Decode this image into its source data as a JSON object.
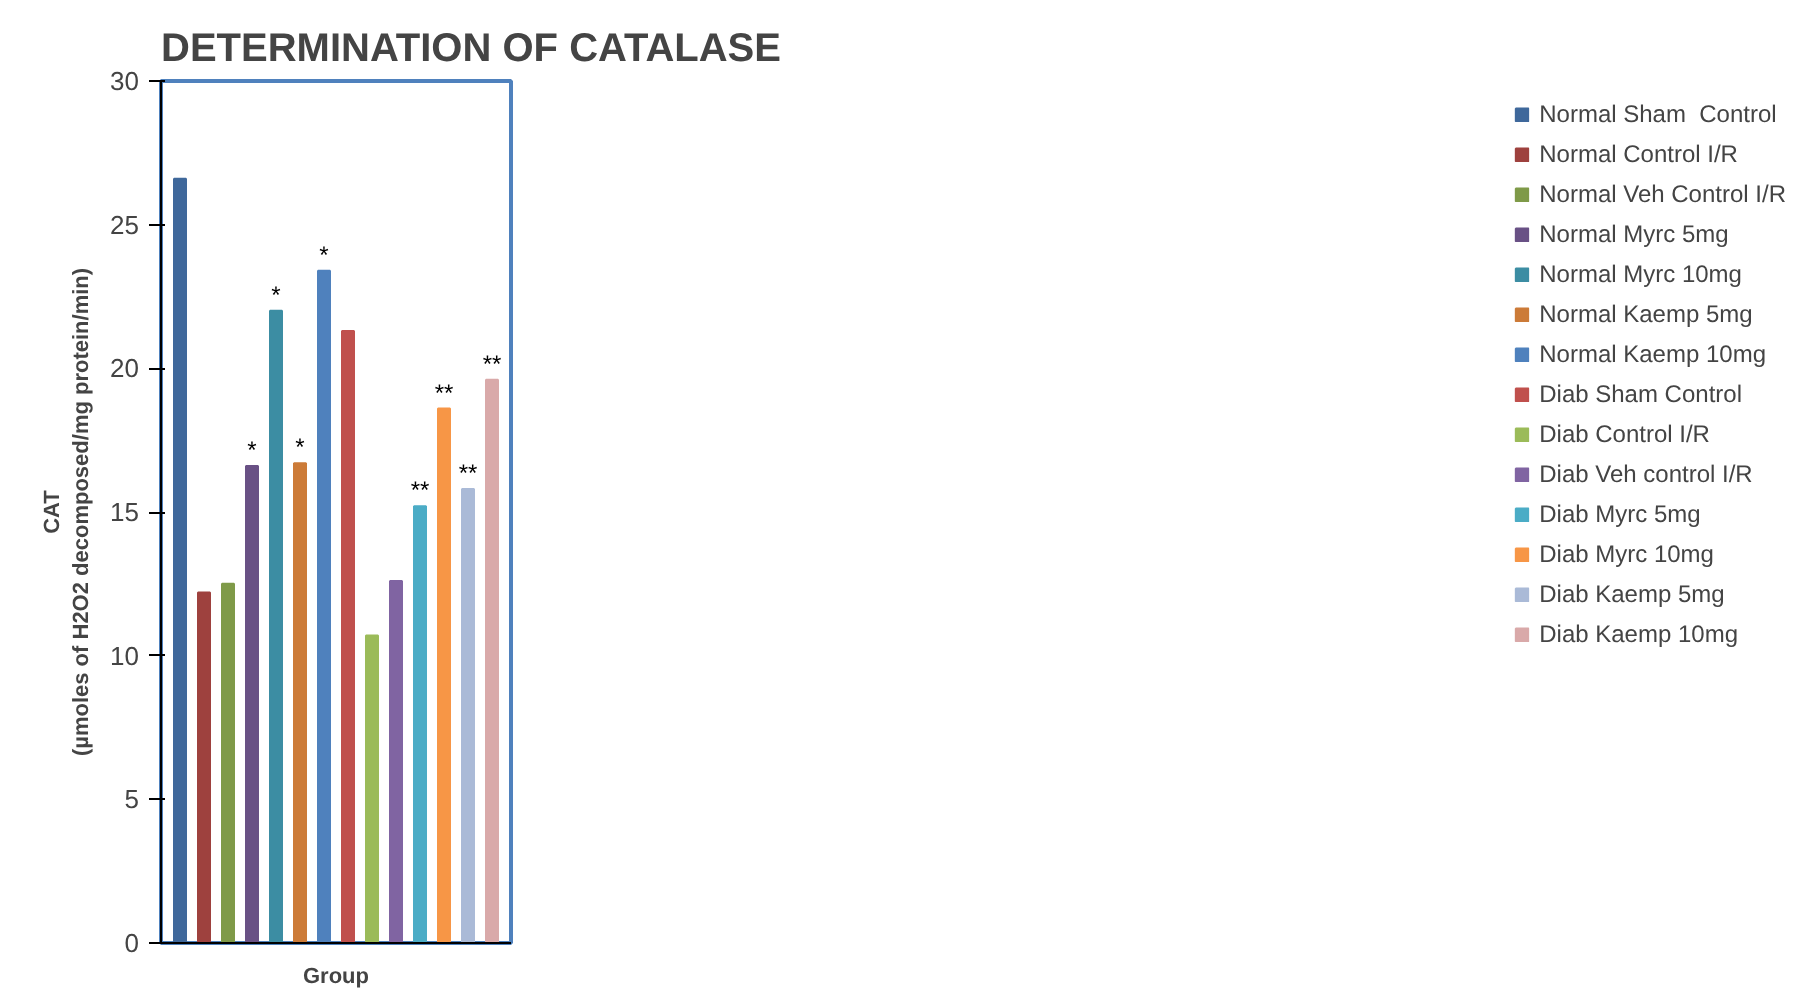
{
  "chart_data": {
    "type": "bar",
    "title": "DETERMINATION OF CATALASE",
    "xlabel": "Group",
    "ylabel": "CAT\n(µmoles of H2O2 decomposed/mg protein/min)",
    "categories": [
      null
    ],
    "ylim": [
      0,
      30
    ],
    "yticks": [
      0,
      5,
      10,
      15,
      20,
      25,
      30
    ],
    "grid": false,
    "legend": "right",
    "series": [
      {
        "name": "Normal Sham  Control",
        "color": "#3f689b",
        "values": [
          26.6
        ]
      },
      {
        "name": "Normal Control I/R",
        "color": "#9e413e",
        "values": [
          12.2
        ]
      },
      {
        "name": "Normal Veh Control I/R",
        "color": "#7f9a48",
        "values": [
          12.5
        ]
      },
      {
        "name": "Normal Myrc 5mg",
        "color": "#695185",
        "values": [
          16.6
        ],
        "value_labels": [
          "*"
        ]
      },
      {
        "name": "Normal Myrc 10mg",
        "color": "#3c8da3",
        "values": [
          22.0
        ],
        "value_labels": [
          "*"
        ]
      },
      {
        "name": "Normal Kaemp 5mg",
        "color": "#cc7b38",
        "values": [
          16.7
        ],
        "value_labels": [
          "*"
        ]
      },
      {
        "name": "Normal Kaemp 10mg",
        "color": "#4f81bd",
        "values": [
          23.4
        ],
        "value_labels": [
          "*"
        ]
      },
      {
        "name": "Diab Sham Control",
        "color": "#c0504d",
        "values": [
          21.3
        ]
      },
      {
        "name": "Diab Control I/R",
        "color": "#9bbb59",
        "values": [
          10.7
        ]
      },
      {
        "name": "Diab Veh control I/R",
        "color": "#8064a2",
        "values": [
          12.6
        ]
      },
      {
        "name": "Diab Myrc 5mg",
        "color": "#4bacc6",
        "values": [
          15.2
        ],
        "value_labels": [
          "**"
        ]
      },
      {
        "name": "Diab Myrc 10mg",
        "color": "#f79646",
        "values": [
          18.6
        ],
        "value_labels": [
          "**"
        ]
      },
      {
        "name": "Diab Kaemp 5mg",
        "color": "#aabad7",
        "values": [
          15.8
        ],
        "value_labels": [
          "**"
        ]
      },
      {
        "name": "Diab Kaemp 10mg",
        "color": "#d9a9a9",
        "values": [
          19.6
        ],
        "value_labels": [
          "**"
        ]
      }
    ]
  }
}
